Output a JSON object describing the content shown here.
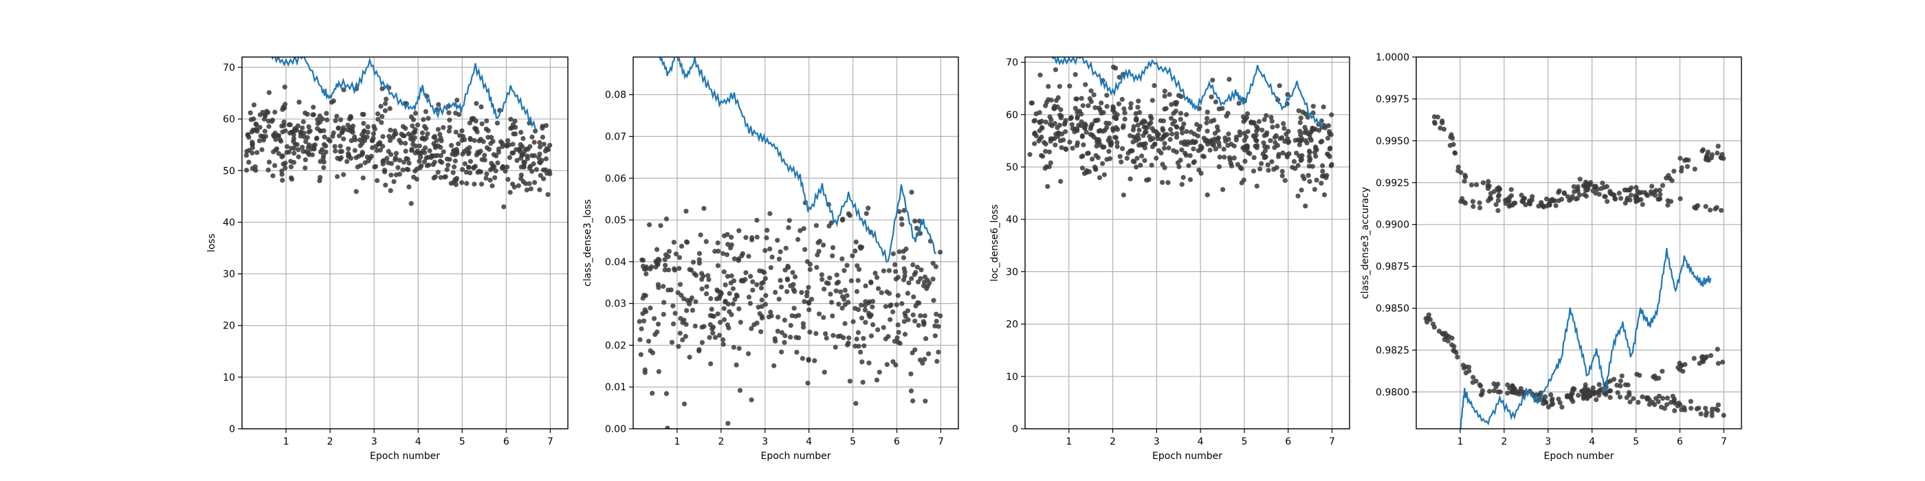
{
  "figure": {
    "point_color": "#3a3a3a",
    "line_color": "#1f77b4",
    "grid_color": "#b0b0b0"
  },
  "chart_data": [
    {
      "type": "scatter",
      "xlabel": "Epoch number",
      "ylabel": "loss",
      "xlim": [
        0,
        7.4
      ],
      "ylim": [
        0,
        72
      ],
      "xticks": [
        "1",
        "2",
        "3",
        "4",
        "5",
        "6",
        "7"
      ],
      "yticks": [
        "0",
        "10",
        "20",
        "30",
        "40",
        "50",
        "60",
        "70"
      ],
      "grid": true,
      "points": {
        "x_range": [
          0.1,
          7.0
        ],
        "count": 620,
        "center": 57,
        "spread": 7,
        "decay": 0.6,
        "min": 34,
        "max": 72,
        "cluster": 0
      },
      "line": {
        "x": [
          0.65,
          1.0,
          1.4,
          1.8,
          2.0,
          2.2,
          2.6,
          2.9,
          3.2,
          3.6,
          3.9,
          4.1,
          4.4,
          4.8,
          5.0,
          5.3,
          5.6,
          5.8,
          6.1,
          6.4,
          6.7
        ],
        "y": [
          72,
          71,
          72,
          66,
          64,
          67,
          66,
          71,
          67,
          63,
          62,
          66,
          61,
          63,
          62,
          70,
          65,
          60,
          66,
          62,
          58
        ]
      }
    },
    {
      "type": "scatter",
      "xlabel": "Epoch number",
      "ylabel": "class_dense3_loss",
      "xlim": [
        0,
        7.4
      ],
      "ylim": [
        0,
        0.089
      ],
      "xticks": [
        "1",
        "2",
        "3",
        "4",
        "5",
        "6",
        "7"
      ],
      "yticks": [
        "0.00",
        "0.01",
        "0.02",
        "0.03",
        "0.04",
        "0.05",
        "0.06",
        "0.07",
        "0.08"
      ],
      "grid": true,
      "points": {
        "x_range": [
          0.1,
          7.0
        ],
        "count": 520,
        "center": 0.032,
        "spread": 0.017,
        "decay": 0.0,
        "min": 0.0,
        "max": 0.089,
        "cluster": 0
      },
      "line": {
        "x": [
          0.6,
          0.8,
          1.0,
          1.2,
          1.4,
          1.7,
          2.0,
          2.3,
          2.6,
          2.9,
          3.2,
          3.5,
          3.8,
          4.0,
          4.3,
          4.6,
          4.9,
          5.2,
          5.5,
          5.8,
          6.1,
          6.4,
          6.6,
          6.9
        ],
        "y": [
          0.089,
          0.085,
          0.09,
          0.084,
          0.088,
          0.082,
          0.078,
          0.08,
          0.072,
          0.07,
          0.068,
          0.063,
          0.06,
          0.052,
          0.058,
          0.049,
          0.056,
          0.05,
          0.046,
          0.04,
          0.058,
          0.045,
          0.05,
          0.042
        ]
      }
    },
    {
      "type": "scatter",
      "xlabel": "Epoch number",
      "ylabel": "loc_dense6_loss",
      "xlim": [
        0,
        7.4
      ],
      "ylim": [
        0,
        71
      ],
      "xticks": [
        "1",
        "2",
        "3",
        "4",
        "5",
        "6",
        "7"
      ],
      "yticks": [
        "0",
        "10",
        "20",
        "30",
        "40",
        "50",
        "60",
        "70"
      ],
      "grid": true,
      "points": {
        "x_range": [
          0.1,
          7.0
        ],
        "count": 620,
        "center": 58,
        "spread": 7,
        "decay": 0.6,
        "min": 34,
        "max": 71,
        "cluster": 0
      },
      "line": {
        "x": [
          0.6,
          0.9,
          1.3,
          1.7,
          2.0,
          2.3,
          2.6,
          2.9,
          3.3,
          3.7,
          3.9,
          4.2,
          4.5,
          4.8,
          5.0,
          5.3,
          5.6,
          5.9,
          6.2,
          6.5,
          6.8
        ],
        "y": [
          71,
          70,
          71,
          67,
          64,
          68,
          67,
          70,
          68,
          63,
          61,
          66,
          62,
          64,
          62,
          69,
          65,
          61,
          66,
          60,
          58
        ]
      }
    },
    {
      "type": "scatter",
      "xlabel": "Epoch number",
      "ylabel": "class_dense3_accuracy",
      "xlim": [
        0,
        7.4
      ],
      "ylim": [
        0.9778,
        1.0
      ],
      "xticks": [
        "1",
        "2",
        "3",
        "4",
        "5",
        "6",
        "7"
      ],
      "yticks": [
        "0.9800",
        "0.9825",
        "0.9850",
        "0.9875",
        "0.9900",
        "0.9925",
        "0.9950",
        "0.9975",
        "1.0000"
      ],
      "grid": true,
      "points": {
        "x_range": [
          0.4,
          7.0
        ],
        "count": 0,
        "center": 0,
        "spread": 0,
        "decay": 0,
        "min": 0,
        "max": 0,
        "cluster": 1,
        "bands": [
          {
            "x": [
              0.4,
              0.8,
              1.0,
              1.5,
              2.0,
              2.5,
              3.0,
              3.5,
              4.0,
              4.5,
              5.0,
              5.5,
              6.0,
              6.5,
              7.0
            ],
            "y": [
              0.9963,
              0.995,
              0.993,
              0.9923,
              0.9918,
              0.9915,
              0.9912,
              0.992,
              0.9922,
              0.9918,
              0.9916,
              0.992,
              0.9935,
              0.9942,
              0.9942
            ],
            "n": 150,
            "jit": 0.0008
          },
          {
            "x": [
              1.0,
              2.0,
              3.0,
              4.0,
              5.0,
              6.0,
              7.0
            ],
            "y": [
              0.9912,
              0.9912,
              0.9912,
              0.992,
              0.992,
              0.9912,
              0.9908
            ],
            "n": 80,
            "jit": 0.0006
          },
          {
            "x": [
              0.2,
              0.6,
              1.0,
              1.5,
              2.0,
              2.5,
              3.0,
              3.5,
              4.0,
              4.5,
              5.0,
              5.5,
              6.0,
              6.5,
              7.0
            ],
            "y": [
              0.9845,
              0.9835,
              0.982,
              0.98,
              0.9803,
              0.98,
              0.9795,
              0.9797,
              0.98,
              0.98,
              0.9797,
              0.9795,
              0.9792,
              0.9789,
              0.9789
            ],
            "n": 180,
            "jit": 0.0007
          },
          {
            "x": [
              3.5,
              4.5,
              5.5,
              6.0,
              6.5,
              7.0
            ],
            "y": [
              0.98,
              0.9805,
              0.981,
              0.9815,
              0.982,
              0.9822
            ],
            "n": 50,
            "jit": 0.0007
          }
        ]
      },
      "line": {
        "x": [
          1.0,
          1.1,
          1.3,
          1.6,
          1.9,
          2.2,
          2.5,
          2.8,
          3.1,
          3.3,
          3.5,
          3.7,
          3.9,
          4.1,
          4.3,
          4.5,
          4.7,
          4.9,
          5.1,
          5.3,
          5.5,
          5.7,
          5.9,
          6.1,
          6.3,
          6.5,
          6.7
        ],
        "y": [
          0.9778,
          0.98,
          0.979,
          0.9781,
          0.9795,
          0.9785,
          0.98,
          0.9795,
          0.981,
          0.982,
          0.985,
          0.983,
          0.981,
          0.9825,
          0.98,
          0.983,
          0.984,
          0.982,
          0.985,
          0.984,
          0.985,
          0.9885,
          0.986,
          0.988,
          0.987,
          0.9865,
          0.9868
        ]
      }
    }
  ]
}
